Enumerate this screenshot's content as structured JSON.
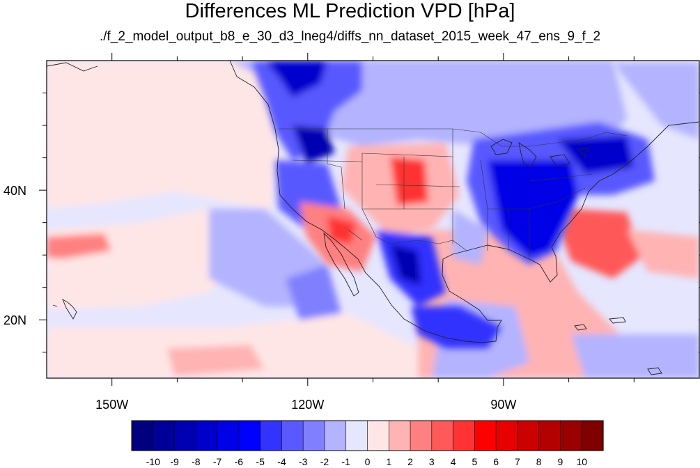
{
  "title": "Differences ML Prediction VPD [hPa]",
  "subtitle": "./f_2_model_output_b8_e_30_d3_lneg4/diffs_nn_dataset_2015_week_47_ens_9_f_2",
  "map": {
    "lon_range": [
      -160,
      -60
    ],
    "lat_range": [
      11,
      60
    ],
    "lon_ticks": [
      {
        "value": -150,
        "label": "150W"
      },
      {
        "value": -120,
        "label": "120W"
      },
      {
        "value": -90,
        "label": "90W"
      }
    ],
    "lat_ticks": [
      {
        "value": 40,
        "label": "40N"
      },
      {
        "value": 20,
        "label": "20N"
      }
    ],
    "minor_lon_step": 10,
    "minor_lat_step": 5,
    "field": "VPD difference (ML prediction)",
    "colors": {
      "land_outline": "#222222",
      "frame": "#000000"
    }
  },
  "colorbar": {
    "labels": [
      "-10",
      "-9",
      "-8",
      "-7",
      "-6",
      "-5",
      "-4",
      "-3",
      "-2",
      "-1",
      "0",
      "1",
      "2",
      "3",
      "4",
      "5",
      "6",
      "7",
      "8",
      "9",
      "10"
    ],
    "colors": [
      "#00007f",
      "#000099",
      "#0000b3",
      "#0000cc",
      "#0000e6",
      "#0000ff",
      "#3333ff",
      "#5959ff",
      "#8080ff",
      "#b3b3ff",
      "#e6e6ff",
      "#ffe6e6",
      "#ffb3b3",
      "#ff8080",
      "#ff5959",
      "#ff3333",
      "#ff0000",
      "#e60000",
      "#cc0000",
      "#b30000",
      "#990000",
      "#7f0000"
    ]
  }
}
